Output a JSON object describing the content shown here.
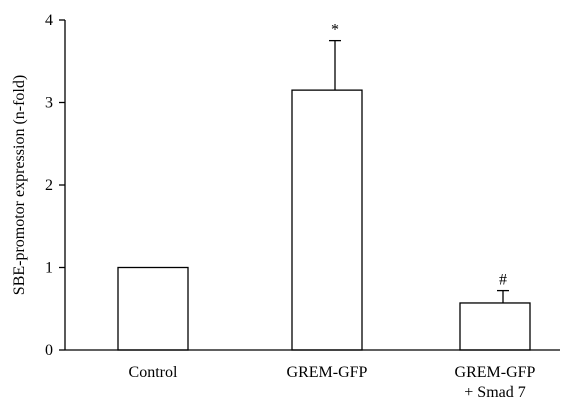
{
  "chart_data": {
    "type": "bar",
    "title": "",
    "xlabel": "",
    "ylabel": "SBE-promotor expression (n-fold)",
    "ylim": [
      0,
      4
    ],
    "yticks": [
      "0",
      "1",
      "2",
      "3",
      "4"
    ],
    "categories": [
      [
        "Control"
      ],
      [
        "GREM-GFP"
      ],
      [
        "GREM-GFP",
        "+ Smad 7"
      ]
    ],
    "values": [
      1.0,
      3.15,
      0.57
    ],
    "errors": [
      0.0,
      0.6,
      0.15
    ],
    "annotations": [
      "",
      "*",
      "#"
    ],
    "grid": false,
    "legend": "none",
    "bar_fill": "#ffffff",
    "bar_stroke": "#000000"
  }
}
